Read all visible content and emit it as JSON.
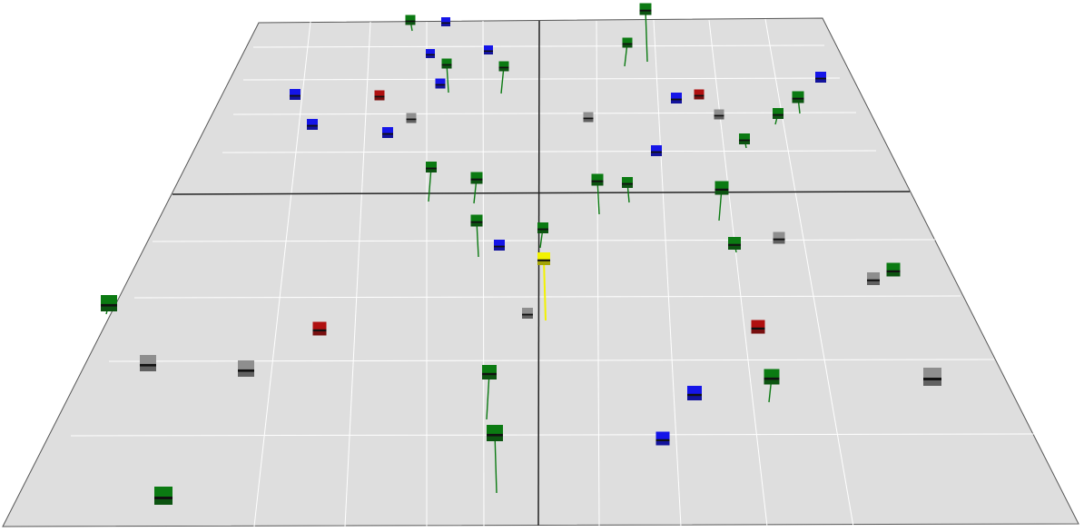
{
  "scene": {
    "view": "3d-perspective-grid",
    "board_color": "#dedede",
    "grid_color": "#ffffff",
    "axis_color": "#222222",
    "marker_colors": {
      "green": "#0b7a12",
      "blue": "#1515e8",
      "red": "#b01010",
      "gray": "#8e8e8e",
      "yellow": "#f2f200"
    },
    "markers": [
      {
        "color": "green",
        "has_pole": true
      },
      {
        "color": "blue",
        "has_pole": false
      },
      {
        "color": "green",
        "has_pole": true
      },
      {
        "color": "green",
        "has_pole": true
      },
      {
        "color": "blue",
        "has_pole": false
      },
      {
        "color": "blue",
        "has_pole": false
      },
      {
        "color": "green",
        "has_pole": true
      },
      {
        "color": "green",
        "has_pole": true
      },
      {
        "color": "blue",
        "has_pole": false
      },
      {
        "color": "blue",
        "has_pole": false
      },
      {
        "color": "red",
        "has_pole": false
      },
      {
        "color": "gray",
        "has_pole": false
      },
      {
        "color": "blue",
        "has_pole": false
      },
      {
        "color": "blue",
        "has_pole": false
      },
      {
        "color": "green",
        "has_pole": true
      },
      {
        "color": "green",
        "has_pole": true
      },
      {
        "color": "blue",
        "has_pole": false
      },
      {
        "color": "red",
        "has_pole": false
      },
      {
        "color": "gray",
        "has_pole": false
      },
      {
        "color": "gray",
        "has_pole": false
      },
      {
        "color": "green",
        "has_pole": true
      },
      {
        "color": "green",
        "has_pole": true
      },
      {
        "color": "blue",
        "has_pole": false
      },
      {
        "color": "blue",
        "has_pole": false
      },
      {
        "color": "green",
        "has_pole": true
      },
      {
        "color": "green",
        "has_pole": true
      },
      {
        "color": "green",
        "has_pole": true
      },
      {
        "color": "green",
        "has_pole": true
      },
      {
        "color": "green",
        "has_pole": true
      },
      {
        "color": "green",
        "has_pole": true
      },
      {
        "color": "green",
        "has_pole": true
      },
      {
        "color": "blue",
        "has_pole": false
      },
      {
        "color": "yellow",
        "has_pole": true
      },
      {
        "color": "green",
        "has_pole": true
      },
      {
        "color": "gray",
        "has_pole": false
      },
      {
        "color": "gray",
        "has_pole": false
      },
      {
        "color": "gray",
        "has_pole": false
      },
      {
        "color": "green",
        "has_pole": true
      },
      {
        "color": "gray",
        "has_pole": false
      },
      {
        "color": "red",
        "has_pole": false
      },
      {
        "color": "red",
        "has_pole": false
      },
      {
        "color": "gray",
        "has_pole": false
      },
      {
        "color": "blue",
        "has_pole": false
      },
      {
        "color": "green",
        "has_pole": true
      },
      {
        "color": "gray",
        "has_pole": false
      },
      {
        "color": "green",
        "has_pole": true
      },
      {
        "color": "green",
        "has_pole": true
      },
      {
        "color": "blue",
        "has_pole": false
      },
      {
        "color": "green",
        "has_pole": true
      },
      {
        "color": "green",
        "has_pole": true
      }
    ]
  }
}
